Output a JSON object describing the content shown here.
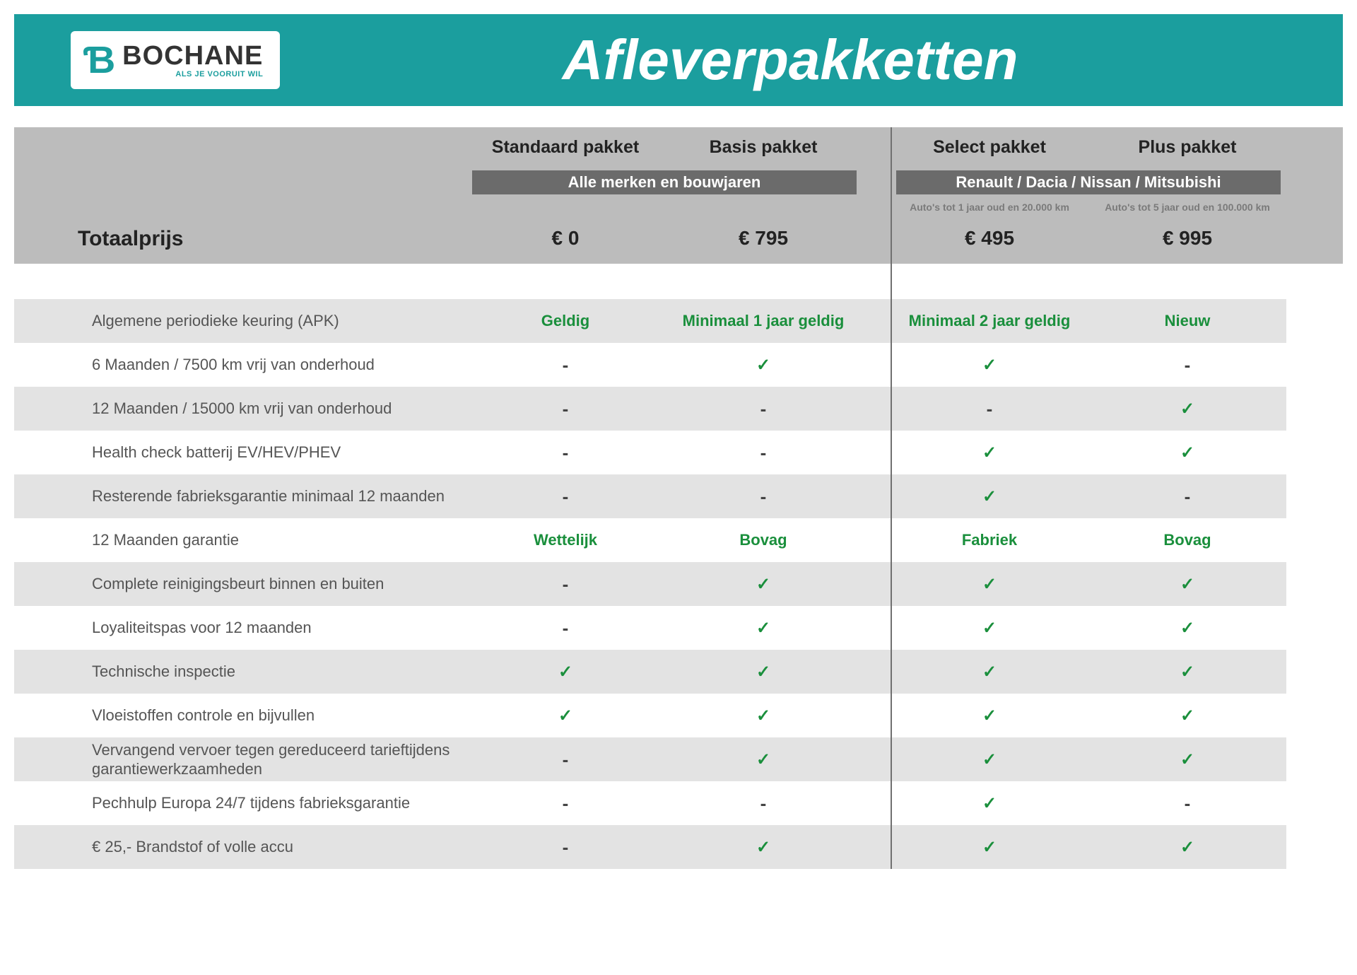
{
  "brand": {
    "name": "BOCHANE",
    "tagline": "ALS JE VOORUIT WIL"
  },
  "page_title": "Afleverpakketten",
  "colors": {
    "header_bg": "#1b9e9e",
    "header_grey": "#bcbcbc",
    "sub_band_bg": "#6b6b6b",
    "row_alt_bg": "#e3e3e3",
    "accent_green": "#1a8f3c",
    "text_dark": "#222222",
    "text_mid": "#555555"
  },
  "packages": [
    {
      "name": "Standaard pakket",
      "group": 0,
      "price": "€ 0",
      "condition": ""
    },
    {
      "name": "Basis pakket",
      "group": 0,
      "price": "€ 795",
      "condition": ""
    },
    {
      "name": "Select pakket",
      "group": 1,
      "price": "€ 495",
      "condition": "Auto's tot 1 jaar oud en 20.000 km"
    },
    {
      "name": "Plus pakket",
      "group": 1,
      "price": "€ 995",
      "condition": "Auto's tot 5 jaar oud en 100.000 km"
    }
  ],
  "group_sub": [
    "Alle merken en bouwjaren",
    "Renault / Dacia / Nissan / Mitsubishi"
  ],
  "totaal_label": "Totaalprijs",
  "features": [
    {
      "label": "Algemene periodieke keuring (APK)",
      "alt": true,
      "values": [
        {
          "t": "text",
          "v": "Geldig"
        },
        {
          "t": "text",
          "v": "Minimaal 1 jaar geldig"
        },
        {
          "t": "text",
          "v": "Minimaal 2 jaar geldig"
        },
        {
          "t": "text",
          "v": "Nieuw"
        }
      ]
    },
    {
      "label": "6 Maanden / 7500 km vrij van onderhoud",
      "alt": false,
      "values": [
        {
          "t": "dash"
        },
        {
          "t": "tick"
        },
        {
          "t": "tick"
        },
        {
          "t": "dash"
        }
      ]
    },
    {
      "label": "12 Maanden / 15000 km vrij van onderhoud",
      "alt": true,
      "values": [
        {
          "t": "dash"
        },
        {
          "t": "dash"
        },
        {
          "t": "dash"
        },
        {
          "t": "tick"
        }
      ]
    },
    {
      "label": "Health check batterij EV/HEV/PHEV",
      "alt": false,
      "values": [
        {
          "t": "dash"
        },
        {
          "t": "dash"
        },
        {
          "t": "tick"
        },
        {
          "t": "tick"
        }
      ]
    },
    {
      "label": "Resterende fabrieksgarantie minimaal 12 maanden",
      "alt": true,
      "values": [
        {
          "t": "dash"
        },
        {
          "t": "dash"
        },
        {
          "t": "tick"
        },
        {
          "t": "dash"
        }
      ]
    },
    {
      "label": "12 Maanden  garantie",
      "alt": false,
      "values": [
        {
          "t": "text",
          "v": "Wettelijk"
        },
        {
          "t": "text",
          "v": "Bovag"
        },
        {
          "t": "text",
          "v": "Fabriek"
        },
        {
          "t": "text",
          "v": "Bovag"
        }
      ]
    },
    {
      "label": "Complete reinigingsbeurt binnen en buiten",
      "alt": true,
      "values": [
        {
          "t": "dash"
        },
        {
          "t": "tick"
        },
        {
          "t": "tick"
        },
        {
          "t": "tick"
        }
      ]
    },
    {
      "label": "Loyaliteitspas voor 12 maanden",
      "alt": false,
      "values": [
        {
          "t": "dash"
        },
        {
          "t": "tick"
        },
        {
          "t": "tick"
        },
        {
          "t": "tick"
        }
      ]
    },
    {
      "label": "Technische inspectie",
      "alt": true,
      "values": [
        {
          "t": "tick"
        },
        {
          "t": "tick"
        },
        {
          "t": "tick"
        },
        {
          "t": "tick"
        }
      ]
    },
    {
      "label": "Vloeistoffen controle en bijvullen",
      "alt": false,
      "values": [
        {
          "t": "tick"
        },
        {
          "t": "tick"
        },
        {
          "t": "tick"
        },
        {
          "t": "tick"
        }
      ]
    },
    {
      "label": "Vervangend vervoer tegen gereduceerd tarief\ntijdens garantiewerkzaamheden",
      "alt": true,
      "values": [
        {
          "t": "dash"
        },
        {
          "t": "tick"
        },
        {
          "t": "tick"
        },
        {
          "t": "tick"
        }
      ]
    },
    {
      "label": "Pechhulp Europa 24/7 tijdens fabrieksgarantie",
      "alt": false,
      "values": [
        {
          "t": "dash"
        },
        {
          "t": "dash"
        },
        {
          "t": "tick"
        },
        {
          "t": "dash"
        }
      ]
    },
    {
      "label": "€ 25,- Brandstof of  volle accu",
      "alt": true,
      "values": [
        {
          "t": "dash"
        },
        {
          "t": "tick"
        },
        {
          "t": "tick"
        },
        {
          "t": "tick"
        }
      ]
    }
  ]
}
